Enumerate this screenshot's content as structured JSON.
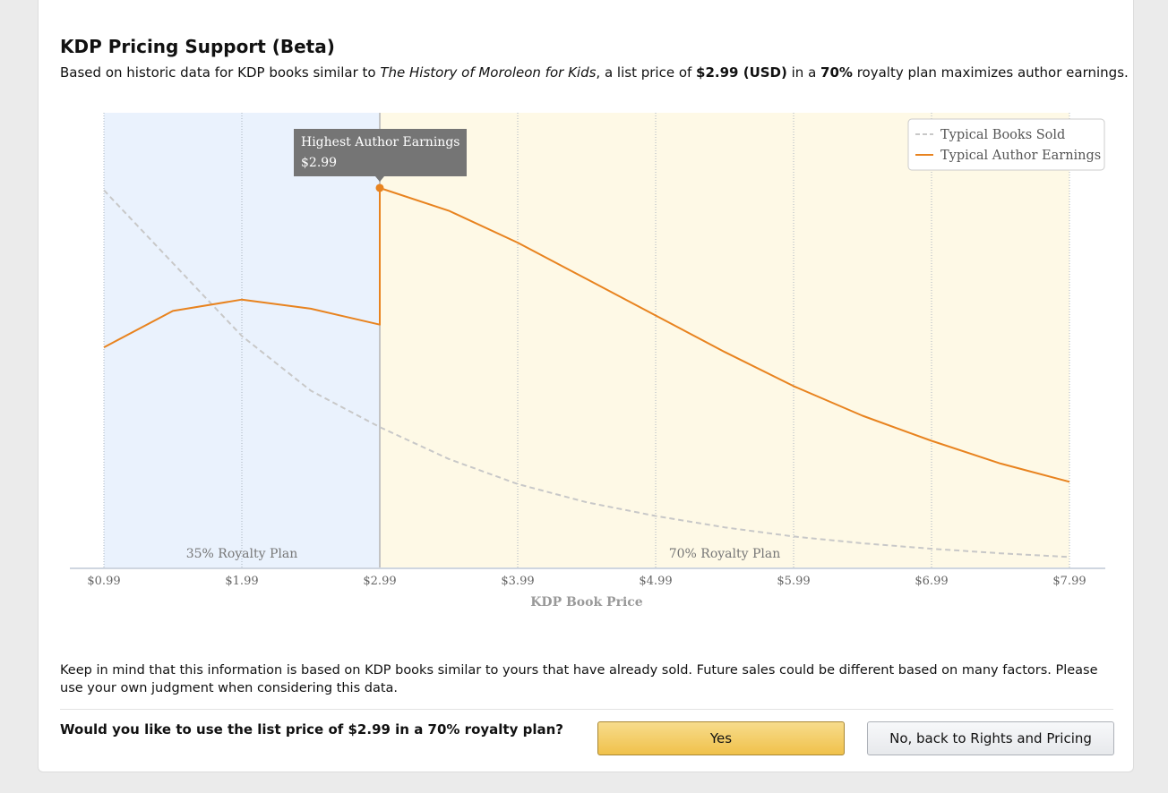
{
  "header": {
    "title": "KDP Pricing Support (Beta)",
    "subtitle_prefix": "Based on historic data for KDP books similar to ",
    "book_title": "The History of Moroleon for Kids",
    "subtitle_mid": ", a list price of ",
    "price": "$2.99 (USD)",
    "subtitle_mid2": " in a ",
    "royalty": "70%",
    "subtitle_suffix": " royalty plan maximizes author earnings."
  },
  "chart_data": {
    "type": "line",
    "xlabel": "KDP Book Price",
    "x_ticks": [
      "$0.99",
      "$1.99",
      "$2.99",
      "$3.99",
      "$4.99",
      "$5.99",
      "$6.99",
      "$7.99"
    ],
    "xlim": [
      0.99,
      7.99
    ],
    "ylim": [
      0,
      100
    ],
    "grid": "vertical",
    "legend_position": "top-right",
    "regions": [
      {
        "label": "35% Royalty Plan",
        "from": 0.99,
        "to": 2.99,
        "color": "#eaf2fd"
      },
      {
        "label": "70% Royalty Plan",
        "from": 2.99,
        "to": 7.99,
        "color": "#fef9e6"
      }
    ],
    "series": [
      {
        "name": "Typical Books Sold",
        "style": "dashed",
        "color": "#c8c8c8",
        "x": [
          0.99,
          1.49,
          1.99,
          2.49,
          2.99,
          3.49,
          3.99,
          4.49,
          4.99,
          5.49,
          5.99,
          6.49,
          6.99,
          7.49,
          7.99
        ],
        "y": [
          83,
          67,
          51,
          39,
          31,
          24,
          18.5,
          14.5,
          11.5,
          9,
          7,
          5.5,
          4.3,
          3.3,
          2.5
        ]
      },
      {
        "name": "Typical Author Earnings",
        "style": "solid",
        "color": "#e8831f",
        "x": [
          0.99,
          1.49,
          1.99,
          2.49,
          2.99,
          2.99,
          3.49,
          3.99,
          4.49,
          4.99,
          5.49,
          5.99,
          6.49,
          6.99,
          7.49,
          7.99
        ],
        "y": [
          48.5,
          56.5,
          59,
          57,
          53.5,
          83.5,
          78.5,
          71.5,
          63.5,
          55.5,
          47.5,
          40,
          33.5,
          28,
          23,
          19
        ]
      }
    ],
    "tooltip": {
      "title": "Highest Author Earnings",
      "value": "$2.99",
      "x": 2.99,
      "y": 83.5
    }
  },
  "note": "Keep in mind that this information is based on KDP books similar to yours that have already sold. Future sales could be different based on many factors. Please use your own judgment when considering this data.",
  "confirm": {
    "question": "Would you like to use the list price of $2.99 in a 70% royalty plan?",
    "yes_label": "Yes",
    "no_label": "No, back to Rights and Pricing"
  }
}
